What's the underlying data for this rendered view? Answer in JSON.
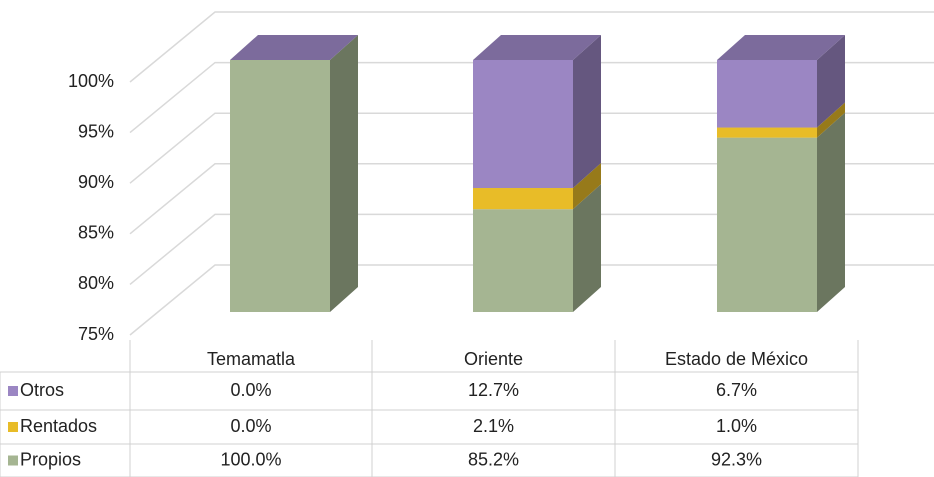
{
  "chart_data": {
    "type": "bar3d_stacked_table",
    "categories": [
      "Temamatla",
      "Oriente",
      "Estado de México"
    ],
    "series": [
      {
        "name": "Otros",
        "color": "#9b86c3",
        "values": [
          0.0,
          12.7,
          6.7
        ],
        "value_labels": [
          "0.0%",
          "12.7%",
          "6.7%"
        ]
      },
      {
        "name": "Rentados",
        "color": "#e8bc28",
        "values": [
          0.0,
          2.1,
          1.0
        ],
        "value_labels": [
          "0.0%",
          "2.1%",
          "1.0%"
        ]
      },
      {
        "name": "Propios",
        "color": "#a5b592",
        "values": [
          100.0,
          85.2,
          92.3
        ],
        "value_labels": [
          "100.0%",
          "85.2%",
          "92.3%"
        ]
      }
    ],
    "ylim": [
      75,
      100
    ],
    "yticks": [
      {
        "value": 75,
        "label": "75%"
      },
      {
        "value": 80,
        "label": "80%"
      },
      {
        "value": 85,
        "label": "85%"
      },
      {
        "value": 90,
        "label": "90%"
      },
      {
        "value": 95,
        "label": "95%"
      },
      {
        "value": 100,
        "label": "100%"
      }
    ],
    "grid": true
  }
}
